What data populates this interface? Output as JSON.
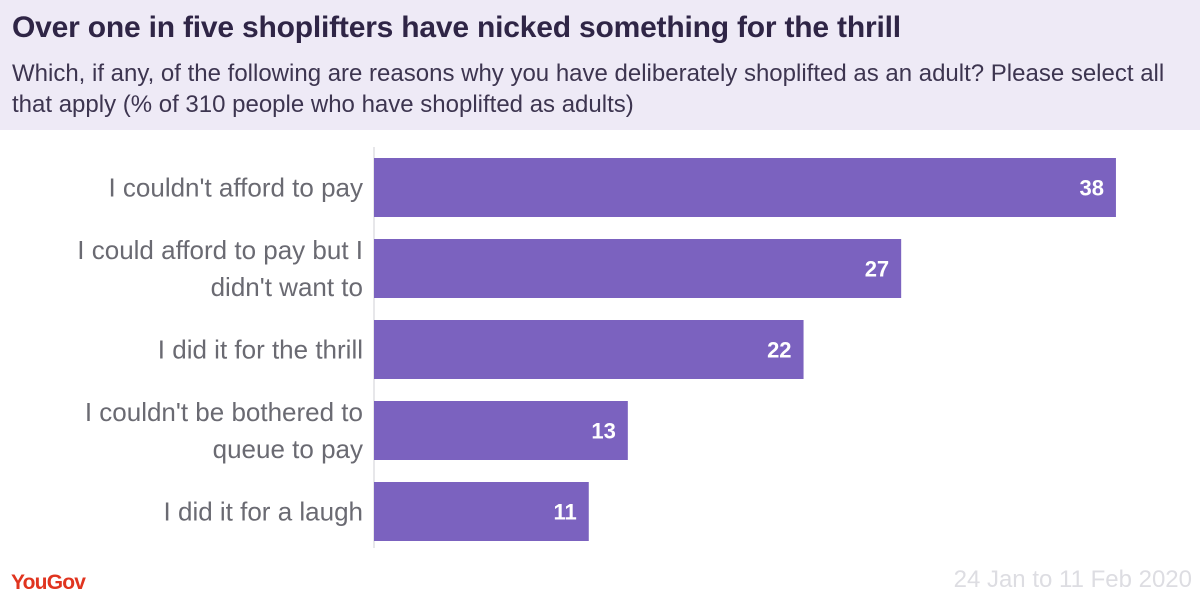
{
  "header": {
    "title": "Over one in five shoplifters have nicked something for the thrill",
    "subtitle": "Which, if any, of the following are reasons why you have deliberately shoplifted as an adult? Please select all that apply (% of 310 people who have shoplifted as adults)"
  },
  "footer": {
    "logo": "YouGov",
    "source": "24 Jan to 11 Feb 2020"
  },
  "colors": {
    "bar": "#7b62bf",
    "header_bg": "#eeeaf6",
    "logo": "#e0341f"
  },
  "chart_data": {
    "type": "bar",
    "orientation": "horizontal",
    "categories": [
      [
        "I couldn't afford to pay"
      ],
      [
        "I could afford to pay but I",
        "didn't want to"
      ],
      [
        "I did it for the thrill"
      ],
      [
        "I couldn't be bothered to",
        "queue to pay"
      ],
      [
        "I did it for a laugh"
      ]
    ],
    "values": [
      38,
      27,
      22,
      13,
      11
    ],
    "data_labels": [
      "38",
      "27",
      "22",
      "13",
      "11"
    ],
    "xlim": [
      0,
      40
    ],
    "grid": false,
    "legend": "none"
  }
}
